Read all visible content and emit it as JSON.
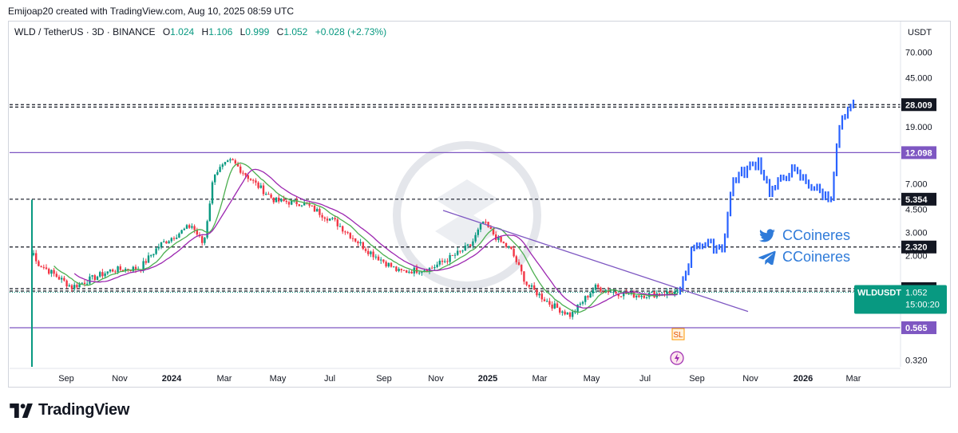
{
  "header": {
    "created": "Emijoap20 created with TradingView.com, Aug 10, 2025 08:59 UTC"
  },
  "legend": {
    "symbol": "WLD / TetherUS · 3D · BINANCE",
    "o_label": "O",
    "o": "1.024",
    "h_label": "H",
    "h": "1.106",
    "l_label": "L",
    "l": "0.999",
    "c_label": "C",
    "c": "1.052",
    "change": "+0.028 (+2.73%)"
  },
  "axis": {
    "currency": "USDT",
    "y_ticks": [
      "70.000",
      "45.000",
      "19.000",
      "7.000",
      "4.500",
      "3.000",
      "2.000",
      "0.320"
    ],
    "x_ticks": [
      "Sep",
      "Nov",
      "2024",
      "Mar",
      "May",
      "Jul",
      "Sep",
      "Nov",
      "2025",
      "Mar",
      "May",
      "Jul",
      "Sep",
      "Nov",
      "2026",
      "Mar"
    ]
  },
  "levels": [
    {
      "value": "28.009",
      "price": 28.009,
      "style": "dashed",
      "color": "#131722",
      "tag_bg": "#131722"
    },
    {
      "value": "12.098",
      "price": 12.098,
      "style": "solid",
      "color": "#7e57c2",
      "tag_bg": "#7e57c2"
    },
    {
      "value": "5.354",
      "price": 5.354,
      "style": "dashed",
      "color": "#131722",
      "tag_bg": "#131722"
    },
    {
      "value": "2.320",
      "price": 2.32,
      "style": "dashed",
      "color": "#131722",
      "tag_bg": "#131722"
    },
    {
      "value": "1.119",
      "price": 1.119,
      "style": "dashed",
      "color": "#131722",
      "tag_bg": "#131722"
    },
    {
      "value": "0.565",
      "price": 0.565,
      "style": "solid",
      "color": "#7e57c2",
      "tag_bg": "#7e57c2"
    }
  ],
  "current": {
    "symbol": "WLDUSDT",
    "price": "1.052",
    "countdown": "15:00:20",
    "color": "#089981"
  },
  "markers": {
    "sl": "SL"
  },
  "social": {
    "twitter": "CCoineres",
    "telegram": "CCoineres"
  },
  "brand": {
    "name": "TradingView"
  },
  "colors": {
    "up": "#089981",
    "down": "#f23645",
    "ma_fast": "#4caf50",
    "ma_slow": "#9c27b0",
    "projection": "#2962ff",
    "trend": "#7e57c2"
  },
  "chart_data": {
    "type": "candlestick",
    "title": "",
    "scale": "log",
    "ylim": [
      0.28,
      110
    ],
    "x_ticks": [
      "Sep",
      "Nov",
      "2024",
      "Mar",
      "May",
      "Jul",
      "Sep",
      "Nov",
      "2025",
      "Mar",
      "May",
      "Jul",
      "Sep",
      "Nov",
      "2026",
      "Mar"
    ],
    "history_anchors": [
      {
        "t": "Aug 2023",
        "close": 2.3
      },
      {
        "t": "Aug 2023",
        "close": 1.8
      },
      {
        "t": "Sep 2023",
        "close": 1.15
      },
      {
        "t": "Oct 2023",
        "close": 1.55
      },
      {
        "t": "Nov 2023",
        "close": 1.6
      },
      {
        "t": "Dec 2023",
        "close": 2.4
      },
      {
        "t": "Jan 2024",
        "close": 3.4
      },
      {
        "t": "Feb 2024",
        "close": 2.4
      },
      {
        "t": "Feb 2024",
        "close": 8.5
      },
      {
        "t": "Mar 2024",
        "close": 10.5
      },
      {
        "t": "Mar 2024",
        "close": 7.0
      },
      {
        "t": "Apr 2024",
        "close": 5.2
      },
      {
        "t": "May 2024",
        "close": 5.0
      },
      {
        "t": "Jun 2024",
        "close": 3.6
      },
      {
        "t": "Jul 2024",
        "close": 2.2
      },
      {
        "t": "Aug 2024",
        "close": 1.5
      },
      {
        "t": "Sep 2024",
        "close": 1.6
      },
      {
        "t": "Oct 2024",
        "close": 2.1
      },
      {
        "t": "Nov 2024",
        "close": 2.4
      },
      {
        "t": "Dec 2024",
        "close": 3.6
      },
      {
        "t": "Dec 2024",
        "close": 2.6
      },
      {
        "t": "Jan 2025",
        "close": 2.2
      },
      {
        "t": "Feb 2025",
        "close": 1.2
      },
      {
        "t": "Mar 2025",
        "close": 0.85
      },
      {
        "t": "Apr 2025",
        "close": 0.7
      },
      {
        "t": "May 2025",
        "close": 1.15
      },
      {
        "t": "Jun 2025",
        "close": 1.05
      },
      {
        "t": "Jul 2025",
        "close": 1.0
      },
      {
        "t": "Aug 2025",
        "close": 1.052
      }
    ],
    "projection_anchors": [
      {
        "t": "Aug 2025",
        "close": 1.05
      },
      {
        "t": "Sep 2025",
        "close": 2.5
      },
      {
        "t": "Sep 2025",
        "close": 2.3
      },
      {
        "t": "Oct 2025",
        "close": 7.5
      },
      {
        "t": "Nov 2025",
        "close": 10.5
      },
      {
        "t": "Dec 2025",
        "close": 6.0
      },
      {
        "t": "Jan 2026",
        "close": 9.0
      },
      {
        "t": "Feb 2026",
        "close": 5.3
      },
      {
        "t": "Feb 2026",
        "close": 20.0
      },
      {
        "t": "Mar 2026",
        "close": 28.0
      }
    ]
  }
}
